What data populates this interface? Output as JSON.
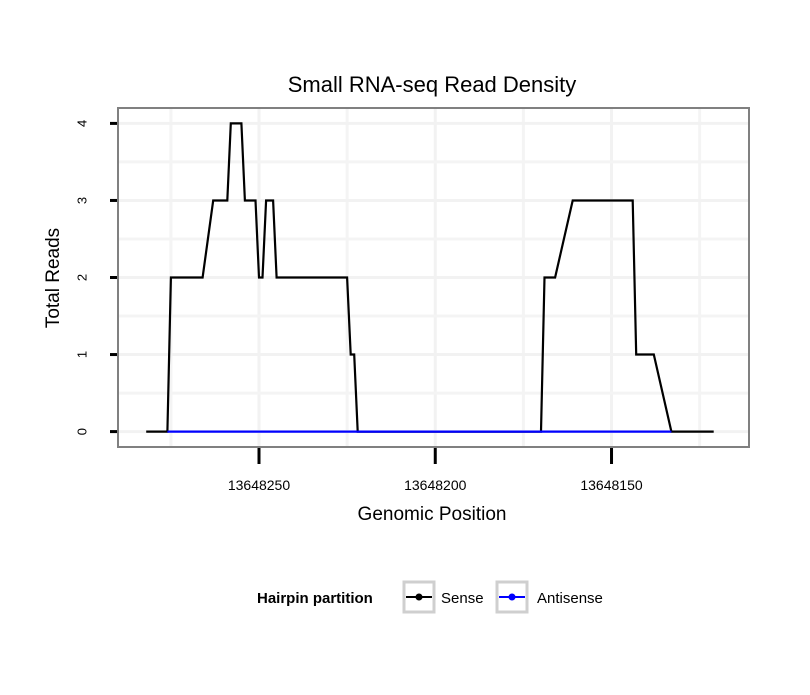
{
  "chart_data": {
    "type": "line",
    "title": "Small RNA-seq Read Density",
    "xlabel": "Genomic Position",
    "ylabel": "Total Reads",
    "x_reversed": true,
    "xlim": [
      13648290,
      13648111
    ],
    "ylim": [
      -0.2,
      4.2
    ],
    "x_ticks": [
      13648250,
      13648200,
      13648150
    ],
    "y_ticks": [
      0,
      1,
      2,
      3,
      4
    ],
    "grid": true,
    "legend": {
      "title": "Hairpin partition",
      "position": "bottom",
      "entries": [
        {
          "name": "Sense",
          "color": "#000000"
        },
        {
          "name": "Antisense",
          "color": "#0000ff"
        }
      ]
    },
    "series": [
      {
        "name": "Sense",
        "color": "#000000",
        "x": [
          13648282,
          13648276,
          13648275,
          13648267,
          13648266,
          13648263,
          13648262,
          13648259,
          13648258,
          13648255,
          13648254,
          13648251,
          13648250,
          13648249,
          13648248,
          13648246,
          13648245,
          13648242,
          13648241,
          13648237,
          13648236,
          13648225,
          13648224,
          13648223,
          13648222,
          13648170,
          13648169,
          13648167,
          13648166,
          13648161,
          13648160,
          13648144,
          13648143,
          13648139,
          13648138,
          13648133,
          13648132,
          13648128,
          13648121,
          13648121
        ],
        "y": [
          0,
          0,
          2,
          2,
          2,
          3,
          3,
          3,
          4,
          4,
          3,
          3,
          2,
          2,
          3,
          3,
          2,
          2,
          2,
          2,
          2,
          2,
          1,
          1,
          0,
          0,
          2,
          2,
          2,
          3,
          3,
          3,
          1,
          1,
          1,
          0,
          0,
          0,
          0,
          0
        ]
      },
      {
        "name": "Antisense",
        "color": "#0000ff",
        "x": [
          13648276,
          13648233,
          13648225,
          13648222,
          13648170,
          13648133
        ],
        "y": [
          0,
          0,
          0,
          0,
          0,
          0
        ]
      }
    ]
  }
}
